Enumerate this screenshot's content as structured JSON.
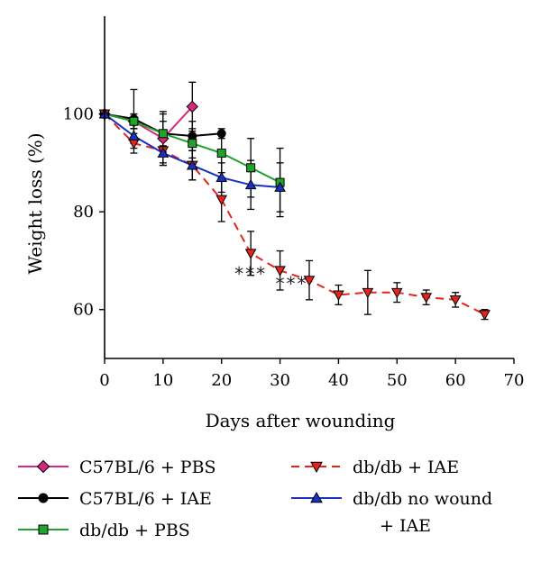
{
  "chart_data": {
    "type": "line",
    "xlabel": "Days after wounding",
    "ylabel": "Weight loss (%)",
    "xlim": [
      0,
      70
    ],
    "ylim": [
      50,
      120
    ],
    "x_ticks": [
      0,
      10,
      20,
      30,
      40,
      50,
      60,
      70
    ],
    "y_ticks": [
      60,
      80,
      100
    ],
    "grid": false,
    "legend_position": "bottom",
    "annotations": [
      {
        "text": "***",
        "x": 25,
        "y": 66
      },
      {
        "text": "***",
        "x": 32,
        "y": 64
      }
    ],
    "series": [
      {
        "name": "C57BL/6 + PBS",
        "color": "#d6287e",
        "marker": "diamond",
        "line_style": "solid",
        "x": [
          0,
          5,
          10,
          15
        ],
        "y": [
          100,
          98.5,
          95,
          101.5
        ],
        "err": [
          0,
          1.5,
          5,
          5
        ]
      },
      {
        "name": "C57BL/6 + IAE",
        "color": "#000000",
        "marker": "circle",
        "line_style": "solid",
        "x": [
          0,
          5,
          10,
          15,
          20
        ],
        "y": [
          100,
          99,
          96,
          95.5,
          96
        ],
        "err": [
          0,
          6,
          4.5,
          3,
          1
        ]
      },
      {
        "name": "db/db + PBS",
        "color": "#1fa32b",
        "marker": "square",
        "line_style": "solid",
        "x": [
          0,
          5,
          10,
          15,
          20,
          25,
          30
        ],
        "y": [
          100,
          98.5,
          96,
          94,
          92,
          89,
          86
        ],
        "err": [
          0,
          1.5,
          2.5,
          3,
          4,
          6,
          7
        ]
      },
      {
        "name": "db/db + IAE",
        "color": "#e4231f",
        "marker": "triangle-down",
        "line_style": "dashed",
        "x": [
          0,
          5,
          10,
          15,
          20,
          25,
          30,
          35,
          40,
          45,
          50,
          55,
          60,
          65
        ],
        "y": [
          100,
          94,
          92.5,
          89.5,
          82.5,
          71.5,
          68,
          66,
          63,
          63.5,
          63.5,
          62.5,
          62,
          59
        ],
        "err": [
          0,
          2,
          3,
          3,
          4.5,
          4.5,
          4,
          4,
          2,
          4.5,
          2,
          1.5,
          1.5,
          1
        ]
      },
      {
        "name": "db/db no wound + IAE",
        "color": "#1a2fc4",
        "marker": "triangle-up",
        "line_style": "solid",
        "x": [
          0,
          5,
          10,
          15,
          20,
          25,
          30
        ],
        "y": [
          100,
          95.5,
          92,
          89.5,
          87,
          85.5,
          85
        ],
        "err": [
          0,
          1.5,
          2.5,
          3,
          3,
          5,
          5
        ]
      }
    ]
  },
  "legend": {
    "items": [
      {
        "label": "C57BL/6 + PBS",
        "series": 0
      },
      {
        "label": "C57BL/6 + IAE",
        "series": 1
      },
      {
        "label": "db/db + PBS",
        "series": 2
      },
      {
        "label": "db/db + IAE",
        "series": 3
      },
      {
        "label": "db/db no wound",
        "label2": "+ IAE",
        "series": 4
      }
    ]
  }
}
